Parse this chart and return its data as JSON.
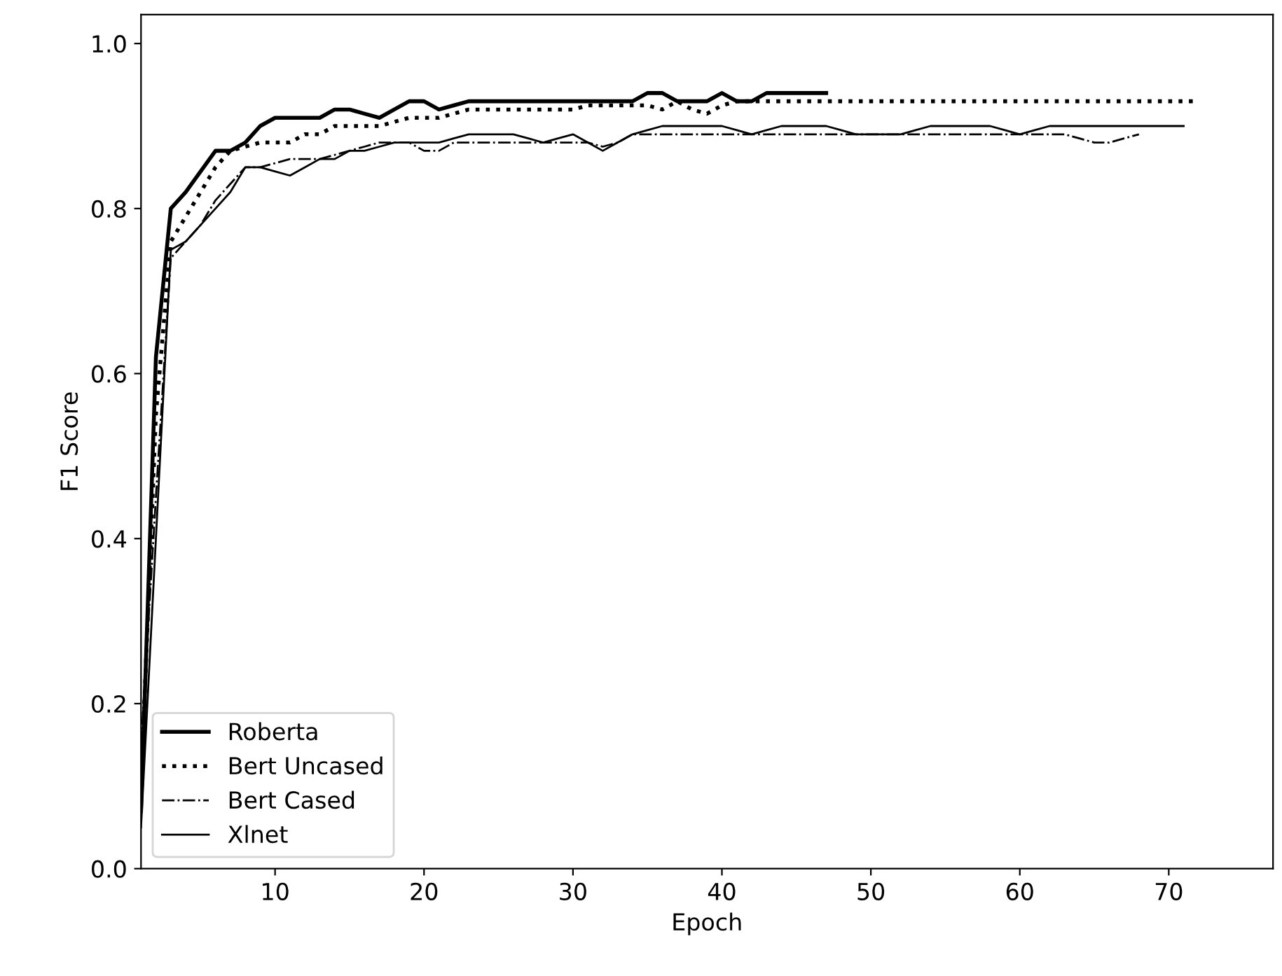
{
  "chart_data": {
    "type": "line",
    "xlabel": "Epoch",
    "ylabel": "F1 Score",
    "xlim": [
      1,
      77
    ],
    "ylim": [
      0,
      1.035
    ],
    "xticks": [
      10,
      20,
      30,
      40,
      50,
      60,
      70
    ],
    "yticks": [
      {
        "value": 0,
        "label": "0.0"
      },
      {
        "value": 0.2,
        "label": "0.2"
      },
      {
        "value": 0.4,
        "label": "0.4"
      },
      {
        "value": 0.6,
        "label": "0.6"
      },
      {
        "value": 0.8,
        "label": "0.8"
      },
      {
        "value": 1,
        "label": "1.0"
      }
    ],
    "grid": false,
    "legend": "bottom left",
    "marker": "none",
    "series": [
      {
        "name": "Roberta",
        "color": "#000000",
        "line_style": "solid",
        "x": [
          1,
          2,
          3,
          4,
          5,
          6,
          7,
          8,
          9,
          10,
          11,
          12,
          13,
          14,
          15,
          16,
          17,
          18,
          19,
          20,
          21,
          22,
          23,
          24,
          25,
          26,
          27,
          28,
          29,
          30,
          31,
          32,
          33,
          34,
          35,
          36,
          37,
          38,
          39,
          40,
          41,
          42,
          43,
          44,
          45,
          46,
          47
        ],
        "values": [
          0.07,
          0.62,
          0.8,
          0.82,
          0.845,
          0.87,
          0.87,
          0.88,
          0.9,
          0.91,
          0.91,
          0.91,
          0.91,
          0.92,
          0.92,
          0.915,
          0.91,
          0.92,
          0.93,
          0.93,
          0.92,
          0.925,
          0.93,
          0.93,
          0.93,
          0.93,
          0.93,
          0.93,
          0.93,
          0.93,
          0.93,
          0.93,
          0.93,
          0.93,
          0.94,
          0.94,
          0.93,
          0.93,
          0.93,
          0.94,
          0.93,
          0.93,
          0.94,
          0.94,
          0.94,
          0.94,
          0.94
        ]
      },
      {
        "name": "Bert Uncased",
        "color": "#000000",
        "line_style": "dotted",
        "x": [
          1,
          2,
          3,
          4,
          5,
          6,
          7,
          8,
          9,
          10,
          11,
          12,
          13,
          14,
          15,
          16,
          17,
          18,
          19,
          20,
          21,
          22,
          23,
          24,
          25,
          26,
          27,
          28,
          29,
          30,
          31,
          32,
          33,
          34,
          35,
          36,
          37,
          38,
          39,
          40,
          41,
          42,
          43,
          44,
          45,
          46,
          47,
          48,
          49,
          50,
          51,
          52,
          53,
          54,
          55,
          56,
          57,
          58,
          59,
          60,
          61,
          62,
          63,
          64,
          65,
          66,
          67,
          68,
          69,
          70,
          71,
          72
        ],
        "values": [
          0.1,
          0.55,
          0.76,
          0.79,
          0.82,
          0.85,
          0.87,
          0.875,
          0.88,
          0.88,
          0.88,
          0.89,
          0.89,
          0.9,
          0.9,
          0.9,
          0.9,
          0.905,
          0.91,
          0.91,
          0.91,
          0.915,
          0.92,
          0.92,
          0.92,
          0.92,
          0.92,
          0.92,
          0.92,
          0.92,
          0.925,
          0.925,
          0.925,
          0.925,
          0.925,
          0.92,
          0.93,
          0.92,
          0.915,
          0.925,
          0.93,
          0.93,
          0.93,
          0.93,
          0.93,
          0.93,
          0.93,
          0.93,
          0.93,
          0.93,
          0.93,
          0.93,
          0.93,
          0.93,
          0.93,
          0.93,
          0.93,
          0.93,
          0.93,
          0.93,
          0.93,
          0.93,
          0.93,
          0.93,
          0.93,
          0.93,
          0.93,
          0.93,
          0.93,
          0.93,
          0.93,
          0.93
        ]
      },
      {
        "name": "Bert Cased",
        "color": "#000000",
        "line_style": "dashdot",
        "x": [
          1,
          2,
          3,
          4,
          5,
          6,
          7,
          8,
          9,
          10,
          11,
          12,
          13,
          14,
          15,
          16,
          17,
          18,
          19,
          20,
          21,
          22,
          23,
          24,
          25,
          26,
          27,
          28,
          29,
          30,
          31,
          32,
          33,
          34,
          35,
          36,
          37,
          38,
          39,
          40,
          41,
          42,
          43,
          44,
          45,
          46,
          47,
          48,
          49,
          50,
          51,
          52,
          53,
          54,
          55,
          56,
          57,
          58,
          59,
          60,
          61,
          62,
          63,
          64,
          65,
          66,
          67,
          68
        ],
        "values": [
          0.15,
          0.45,
          0.74,
          0.76,
          0.78,
          0.81,
          0.83,
          0.85,
          0.85,
          0.855,
          0.86,
          0.86,
          0.86,
          0.865,
          0.87,
          0.875,
          0.88,
          0.88,
          0.88,
          0.87,
          0.87,
          0.88,
          0.88,
          0.88,
          0.88,
          0.88,
          0.88,
          0.88,
          0.88,
          0.88,
          0.88,
          0.875,
          0.88,
          0.89,
          0.89,
          0.89,
          0.89,
          0.89,
          0.89,
          0.89,
          0.89,
          0.89,
          0.89,
          0.89,
          0.89,
          0.89,
          0.89,
          0.89,
          0.89,
          0.89,
          0.89,
          0.89,
          0.89,
          0.89,
          0.89,
          0.89,
          0.89,
          0.89,
          0.89,
          0.89,
          0.89,
          0.89,
          0.89,
          0.885,
          0.88,
          0.88,
          0.885,
          0.89
        ]
      },
      {
        "name": "Xlnet",
        "color": "#000000",
        "line_style": "solid",
        "x": [
          1,
          2,
          3,
          4,
          5,
          6,
          7,
          8,
          9,
          10,
          11,
          12,
          13,
          14,
          15,
          16,
          17,
          18,
          19,
          20,
          21,
          22,
          23,
          24,
          25,
          26,
          27,
          28,
          29,
          30,
          31,
          32,
          33,
          34,
          35,
          36,
          37,
          38,
          39,
          40,
          41,
          42,
          43,
          44,
          45,
          46,
          47,
          48,
          49,
          50,
          51,
          52,
          53,
          54,
          55,
          56,
          57,
          58,
          59,
          60,
          61,
          62,
          63,
          64,
          65,
          66,
          67,
          68,
          69,
          70,
          71
        ],
        "values": [
          0.05,
          0.4,
          0.75,
          0.76,
          0.78,
          0.8,
          0.82,
          0.85,
          0.85,
          0.845,
          0.84,
          0.85,
          0.86,
          0.86,
          0.87,
          0.87,
          0.875,
          0.88,
          0.88,
          0.88,
          0.88,
          0.885,
          0.89,
          0.89,
          0.89,
          0.89,
          0.885,
          0.88,
          0.885,
          0.89,
          0.88,
          0.87,
          0.88,
          0.89,
          0.895,
          0.9,
          0.9,
          0.9,
          0.9,
          0.9,
          0.895,
          0.89,
          0.895,
          0.9,
          0.9,
          0.9,
          0.9,
          0.895,
          0.89,
          0.89,
          0.89,
          0.89,
          0.895,
          0.9,
          0.9,
          0.9,
          0.9,
          0.9,
          0.895,
          0.89,
          0.895,
          0.9,
          0.9,
          0.9,
          0.9,
          0.9,
          0.9,
          0.9,
          0.9,
          0.9,
          0.9
        ]
      }
    ]
  }
}
